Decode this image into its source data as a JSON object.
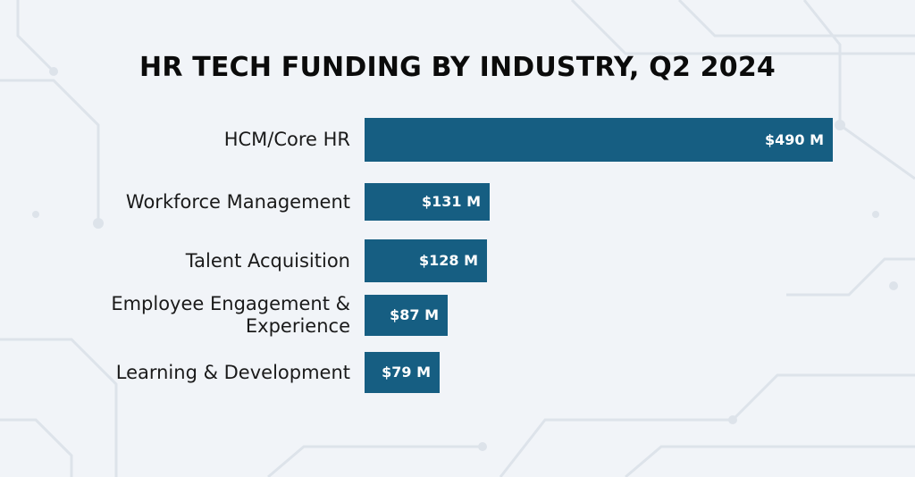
{
  "chart_data": {
    "type": "bar",
    "orientation": "horizontal",
    "title": "HR TECH FUNDING BY INDUSTRY, Q2 2024",
    "categories": [
      "HCM/Core HR",
      "Workforce Management",
      "Talent Acquisition",
      "Employee Engagement &\nExperience",
      "Learning & Development"
    ],
    "values": [
      490,
      131,
      128,
      87,
      79
    ],
    "value_labels": [
      "$490 M",
      "$131 M",
      "$128 M",
      "$87 M",
      "$79 M"
    ],
    "xlim": [
      0,
      490
    ],
    "grid": false,
    "legend": "none",
    "colors": {
      "bar": "#165e82",
      "bar_label": "#ffffff",
      "title": "#0b0b0b",
      "background": "#f1f4f8"
    }
  }
}
